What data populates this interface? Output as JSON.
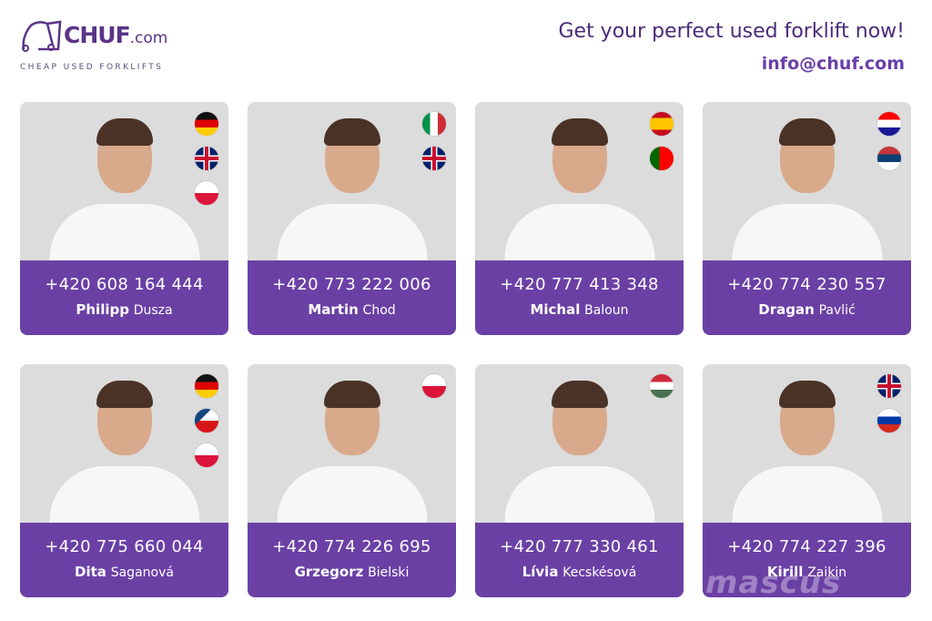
{
  "header": {
    "logo_main": "CHUF",
    "logo_suffix": ".com",
    "tagline": "CHEAP USED FORKLIFTS",
    "headline": "Get your perfect used forklift now!",
    "email": "info@chuf.com"
  },
  "colors": {
    "brand": "#6b40a5",
    "headline": "#4b2a78"
  },
  "contacts": [
    {
      "phone": "+420 608 164 444",
      "first": "Philipp",
      "last": "Dusza",
      "flags": [
        "de",
        "gb",
        "pl"
      ]
    },
    {
      "phone": "+420 773 222 006",
      "first": "Martin",
      "last": "Chod",
      "flags": [
        "it",
        "gb"
      ]
    },
    {
      "phone": "+420 777 413 348",
      "first": "Michal",
      "last": "Baloun",
      "flags": [
        "es",
        "pt"
      ]
    },
    {
      "phone": "+420 774 230 557",
      "first": "Dragan",
      "last": "Pavlić",
      "flags": [
        "hr",
        "rs"
      ]
    },
    {
      "phone": "+420 775 660 044",
      "first": "Dita",
      "last": "Saganová",
      "flags": [
        "de",
        "cz",
        "pl"
      ]
    },
    {
      "phone": "+420 774 226 695",
      "first": "Grzegorz",
      "last": "Bielski",
      "flags": [
        "pl"
      ]
    },
    {
      "phone": "+420 777 330 461",
      "first": "Lívia",
      "last": "Kecskésová",
      "flags": [
        "hu"
      ]
    },
    {
      "phone": "+420 774 227 396",
      "first": "Kirill",
      "last": "Zaikin",
      "flags": [
        "gb",
        "ru"
      ]
    }
  ],
  "watermark": "mascus"
}
